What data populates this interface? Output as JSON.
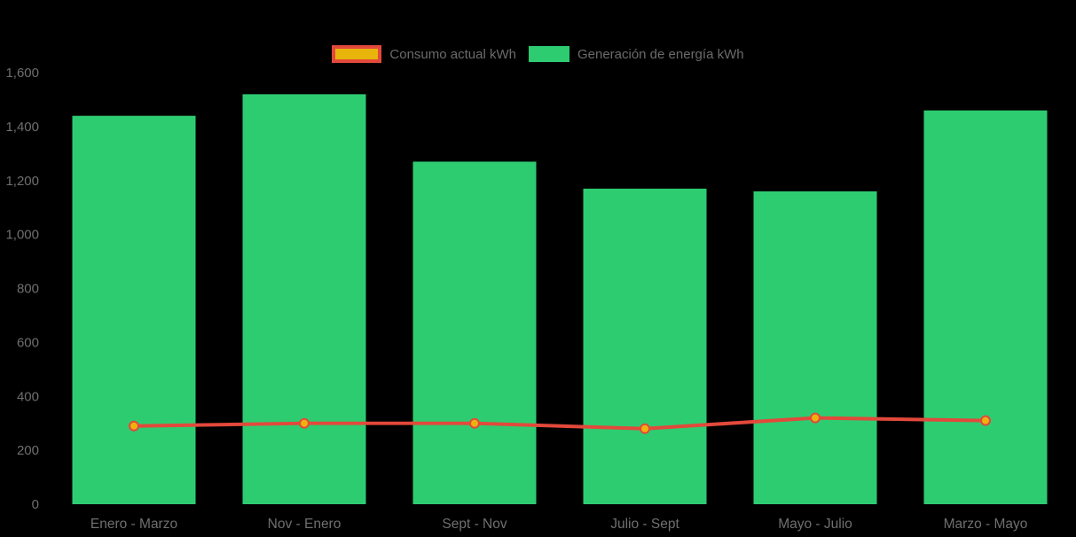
{
  "page": {
    "background": "#000000"
  },
  "legend": {
    "position": "top",
    "items": [
      {
        "label": "Consumo actual kWh",
        "swatch_fill": "#e9b40c",
        "swatch_border": "#e2493b"
      },
      {
        "label": "Generación de energía kWh",
        "swatch_fill": "#2ecc71",
        "swatch_border": "#2ecc71"
      }
    ],
    "text_color": "#6b6b6b"
  },
  "chart_data": {
    "type": "bar",
    "title": "",
    "xlabel": "",
    "ylabel": "",
    "categories": [
      "Enero - Marzo",
      "Nov - Enero",
      "Sept - Nov",
      "Julio - Sept",
      "Mayo - Julio",
      "Marzo - Mayo"
    ],
    "series": [
      {
        "name": "Consumo actual kWh",
        "type": "line",
        "color": "#e2493b",
        "point_fill": "#efb10e",
        "values": [
          290,
          300,
          300,
          280,
          320,
          310
        ]
      },
      {
        "name": "Generación de energía kWh",
        "type": "bar",
        "color": "#2ecc71",
        "values": [
          1440,
          1520,
          1270,
          1170,
          1160,
          1460
        ]
      }
    ],
    "ylim": [
      0,
      1600
    ],
    "yticks_labels": [
      "1,600",
      "1,400",
      "1,200",
      "1,000",
      "800",
      "600",
      "400",
      "200",
      "0"
    ],
    "yticks_values": [
      1600,
      1400,
      1200,
      1000,
      800,
      600,
      400,
      200,
      0
    ],
    "axis_text_color": "#6f6f6f",
    "grid": false,
    "legend_position": "top"
  }
}
